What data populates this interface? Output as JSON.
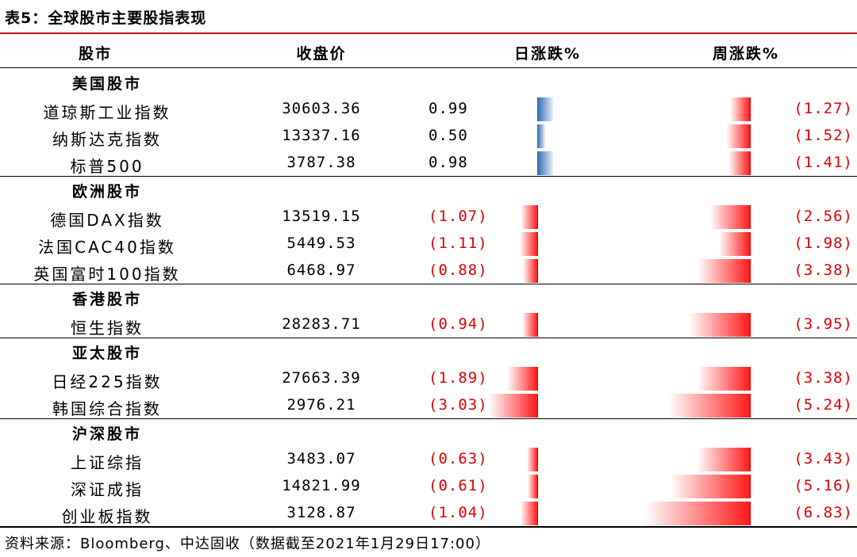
{
  "title": "表5：全球股市主要股指表现",
  "header": {
    "market": "股市",
    "close": "收盘价",
    "day": "日涨跌%",
    "week": "周涨跌%"
  },
  "groups": [
    {
      "title": "美国股市",
      "rows": [
        {
          "name": "道琼斯工业指数",
          "close": "30603.36",
          "day_text": "0.99",
          "day": 0.99,
          "week_text": "(1.27)",
          "week": -1.27
        },
        {
          "name": "纳斯达克指数",
          "close": "13337.16",
          "day_text": "0.50",
          "day": 0.5,
          "week_text": "(1.52)",
          "week": -1.52
        },
        {
          "name": "标普500",
          "close": "3787.38",
          "day_text": "0.98",
          "day": 0.98,
          "week_text": "(1.41)",
          "week": -1.41
        }
      ]
    },
    {
      "title": "欧洲股市",
      "rows": [
        {
          "name": "德国DAX指数",
          "close": "13519.15",
          "day_text": "(1.07)",
          "day": -1.07,
          "week_text": "(2.56)",
          "week": -2.56
        },
        {
          "name": "法国CAC40指数",
          "close": "5449.53",
          "day_text": "(1.11)",
          "day": -1.11,
          "week_text": "(1.98)",
          "week": -1.98
        },
        {
          "name": "英国富时100指数",
          "close": "6468.97",
          "day_text": "(0.88)",
          "day": -0.88,
          "week_text": "(3.38)",
          "week": -3.38
        }
      ]
    },
    {
      "title": "香港股市",
      "rows": [
        {
          "name": "恒生指数",
          "close": "28283.71",
          "day_text": "(0.94)",
          "day": -0.94,
          "week_text": "(3.95)",
          "week": -3.95
        }
      ]
    },
    {
      "title": "亚太股市",
      "rows": [
        {
          "name": "日经225指数",
          "close": "27663.39",
          "day_text": "(1.89)",
          "day": -1.89,
          "week_text": "(3.38)",
          "week": -3.38
        },
        {
          "name": "韩国综合指数",
          "close": "2976.21",
          "day_text": "(3.03)",
          "day": -3.03,
          "week_text": "(5.24)",
          "week": -5.24
        }
      ]
    },
    {
      "title": "沪深股市",
      "rows": [
        {
          "name": "上证综指",
          "close": "3483.07",
          "day_text": "(0.63)",
          "day": -0.63,
          "week_text": "(3.43)",
          "week": -3.43
        },
        {
          "name": "深证成指",
          "close": "14821.99",
          "day_text": "(0.61)",
          "day": -0.61,
          "week_text": "(5.16)",
          "week": -5.16
        },
        {
          "name": "创业板指数",
          "close": "3128.87",
          "day_text": "(1.04)",
          "day": -1.04,
          "week_text": "(6.83)",
          "week": -6.83
        }
      ]
    }
  ],
  "footer": "资料来源：Bloomberg、中达固收（数据截至2021年1月29日17:00）",
  "colors": {
    "negative": "#e00000",
    "positive_bar": "#2f6ab8",
    "negative_bar": "#ff1a1a",
    "title_rule": "#c00000"
  }
}
